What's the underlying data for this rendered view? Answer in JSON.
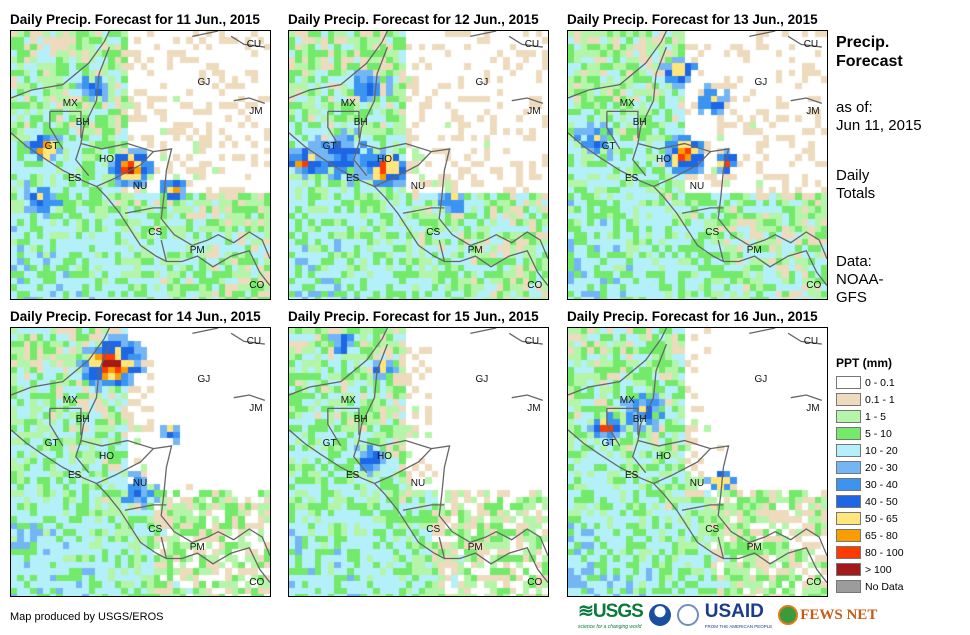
{
  "panels": [
    {
      "title": "Daily Precip. Forecast for 11 Jun., 2015"
    },
    {
      "title": "Daily Precip. Forecast for 12 Jun., 2015"
    },
    {
      "title": "Daily Precip. Forecast for 13 Jun., 2015"
    },
    {
      "title": "Daily Precip. Forecast for 14 Jun., 2015"
    },
    {
      "title": "Daily Precip. Forecast for 15 Jun., 2015"
    },
    {
      "title": "Daily Precip. Forecast for 16 Jun., 2015"
    }
  ],
  "country_labels": [
    "MX",
    "BH",
    "GT",
    "HO",
    "ES",
    "NU",
    "CS",
    "PM",
    "CO",
    "CU",
    "GJ",
    "JM"
  ],
  "side": {
    "title1": "Precip.",
    "title2": "Forecast",
    "asof1": "as of:",
    "asof2": "Jun 11, 2015",
    "daily1": "Daily",
    "daily2": "Totals",
    "data1": "Data:",
    "data2": "NOAA-",
    "data3": "GFS"
  },
  "legend": {
    "title": "PPT (mm)",
    "items": [
      {
        "label": "0 - 0.1",
        "color": "#ffffff"
      },
      {
        "label": "0.1 - 1",
        "color": "#eedbbd"
      },
      {
        "label": "1 - 5",
        "color": "#b5f5a9"
      },
      {
        "label": "5 - 10",
        "color": "#74ea6b"
      },
      {
        "label": "10 - 20",
        "color": "#b4f0f9"
      },
      {
        "label": "20 - 30",
        "color": "#74b6f5"
      },
      {
        "label": "30 - 40",
        "color": "#3b93f2"
      },
      {
        "label": "40 - 50",
        "color": "#1d66e6"
      },
      {
        "label": "50 - 65",
        "color": "#fee57c"
      },
      {
        "label": "65 - 80",
        "color": "#fb9d00"
      },
      {
        "label": "80 - 100",
        "color": "#fc3b00"
      },
      {
        "label": "> 100",
        "color": "#a31a1a"
      },
      {
        "label": "No Data",
        "color": "#9c9c9c"
      }
    ]
  },
  "credit": "Map produced by USGS/EROS",
  "logos": {
    "usgs": "USGS",
    "usgs_tag": "science for a changing world",
    "usaid": "USAID",
    "usaid_tag": "FROM THE AMERICAN PEOPLE",
    "fews": "FEWS NET"
  }
}
